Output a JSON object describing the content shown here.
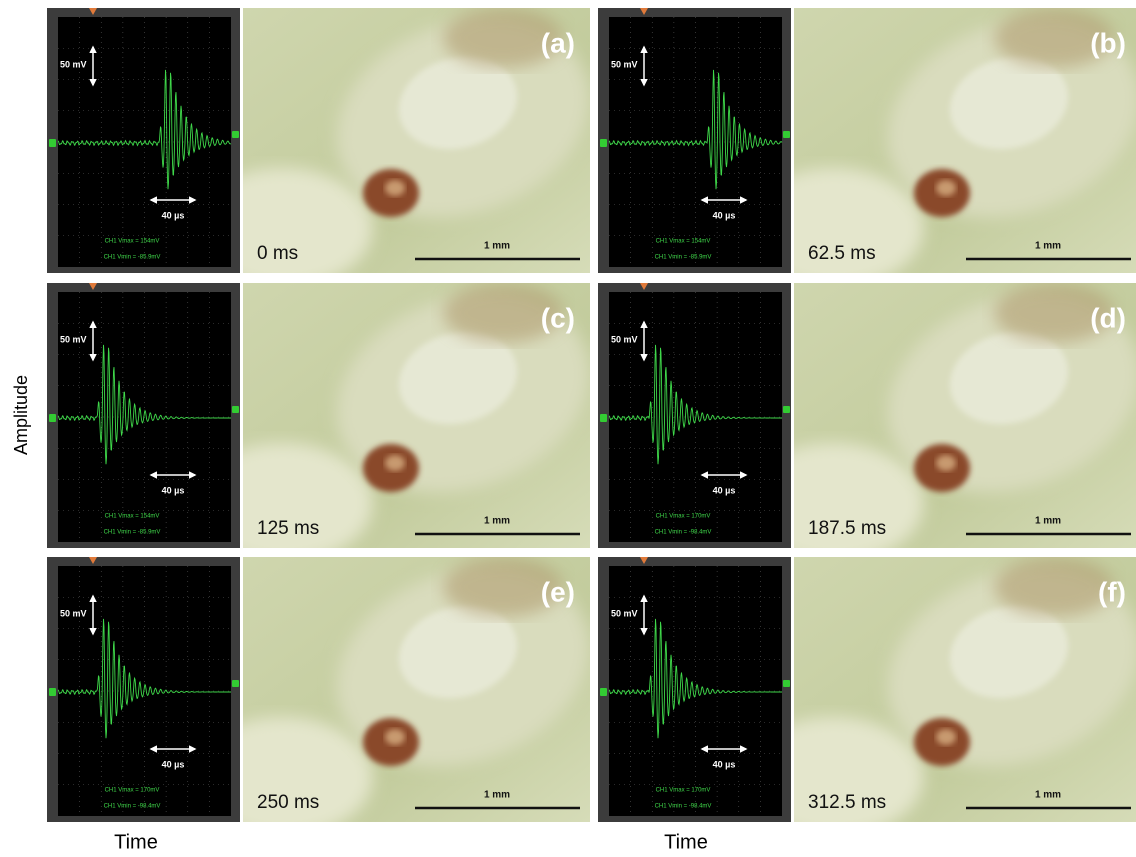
{
  "figure": {
    "y_label": "Amplitude",
    "x_labels": [
      "Time",
      "Time"
    ],
    "panels": [
      {
        "label": "(a)",
        "time": "0 ms",
        "amplitude_scale": "50 mV",
        "time_scale": "40 µs",
        "length_scale": "1 mm",
        "vmax": "CH1 Vmax = 154mV",
        "vmin": "CH1 Vmin = -85.9mV"
      },
      {
        "label": "(b)",
        "time": "62.5 ms",
        "amplitude_scale": "50 mV",
        "time_scale": "40 µs",
        "length_scale": "1 mm",
        "vmax": "CH1 Vmax = 154mV",
        "vmin": "CH1 Vmin = -85.9mV"
      },
      {
        "label": "(c)",
        "time": "125 ms",
        "amplitude_scale": "50 mV",
        "time_scale": "40 µs",
        "length_scale": "1 mm",
        "vmax": "CH1 Vmax = 154mV",
        "vmin": "CH1 Vmin = -85.9mV"
      },
      {
        "label": "(d)",
        "time": "187.5 ms",
        "amplitude_scale": "50 mV",
        "time_scale": "40 µs",
        "length_scale": "1 mm",
        "vmax": "CH1 Vmax = 170mV",
        "vmin": "CH1 Vmin = -98.4mV"
      },
      {
        "label": "(e)",
        "time": "250 ms",
        "amplitude_scale": "50 mV",
        "time_scale": "40 µs",
        "length_scale": "1 mm",
        "vmax": "CH1 Vmax = 170mV",
        "vmin": "CH1 Vmin = -98.4mV"
      },
      {
        "label": "(f)",
        "time": "312.5 ms",
        "amplitude_scale": "50 mV",
        "time_scale": "40 µs",
        "length_scale": "1 mm",
        "vmax": "CH1 Vmax = 170mV",
        "vmin": "CH1 Vmin = -98.4mV"
      }
    ]
  }
}
